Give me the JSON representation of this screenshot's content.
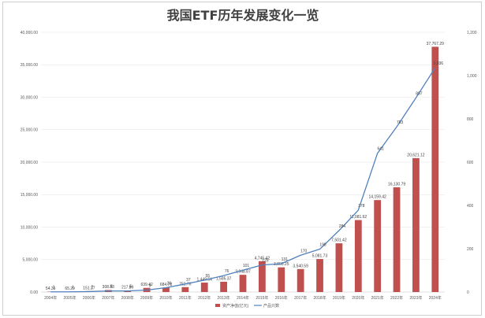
{
  "chart_data": {
    "type": "bar+line",
    "title": "我国ETF历年发展变化一览",
    "categories": [
      "2004年",
      "2005年",
      "2006年",
      "2007年",
      "2008年",
      "2009年",
      "2010年",
      "2011年",
      "2012年",
      "2013年",
      "2014年",
      "2015年",
      "2016年",
      "2017年",
      "2018年",
      "2019年",
      "2020年",
      "2021年",
      "2022年",
      "2023年",
      "2024年"
    ],
    "series": [
      {
        "name": "资产净值(亿元)",
        "type": "bar",
        "axis": "left",
        "color": "#c0504d",
        "values": [
          54.35,
          65.29,
          151.27,
          308.83,
          217.89,
          639.42,
          684.78,
          752.76,
          1449.54,
          1585.37,
          2648.87,
          4745.42,
          3800.25,
          3540.59,
          5081.73,
          7501.42,
          11081.62,
          14159.42,
          16130.79,
          20621.12,
          37767.29
        ],
        "labels": [
          "54.35",
          "65.29",
          "151.27",
          "308.83",
          "217.89",
          "639.42",
          "684.78",
          "752.76",
          "1,449.54",
          "1,585.37",
          "2,648.87",
          "4,745.42",
          "3,800.25",
          "3,540.59",
          "5,081.73",
          "7,501.42",
          "11,081.62",
          "14,159.42",
          "16,130.79",
          "20,621.12",
          "37,767.29"
        ]
      },
      {
        "name": "产品只数",
        "type": "line",
        "axis": "right",
        "color": "#4f81bd",
        "values": [
          1,
          1,
          2,
          5,
          5,
          9,
          20,
          37,
          55,
          76,
          101,
          125,
          131,
          170,
          198,
          284,
          378,
          641,
          763,
          897,
          1036
        ],
        "labels": [
          "1",
          "1",
          "2",
          "5",
          "5",
          "9",
          "20",
          "37",
          "55",
          "76",
          "101",
          "125",
          "131",
          "170",
          "198",
          "284",
          "378",
          "641",
          "763",
          "897",
          "1,036"
        ]
      }
    ],
    "y_left": {
      "min": 0,
      "max": 40000,
      "step": 5000,
      "tick_labels": [
        "0.00",
        "5,000.00",
        "10,000.00",
        "15,000.00",
        "20,000.00",
        "25,000.00",
        "30,000.00",
        "35,000.00",
        "40,000.00"
      ]
    },
    "y_right": {
      "min": 0,
      "max": 1200,
      "step": 200,
      "tick_labels": [
        "0",
        "200",
        "400",
        "600",
        "800",
        "1,000",
        "1,200"
      ]
    },
    "grid": true,
    "legend": "bottom-center"
  }
}
